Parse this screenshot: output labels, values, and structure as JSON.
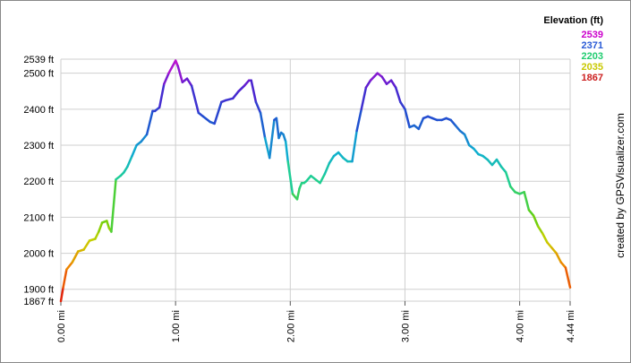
{
  "chart_data": {
    "type": "line",
    "xlabel": "",
    "ylabel": "",
    "xlim": [
      0,
      4.44
    ],
    "ylim": [
      1867,
      2539
    ],
    "y_ticks": [
      {
        "value": 1867,
        "label": "1867 ft"
      },
      {
        "value": 1900,
        "label": "1900 ft"
      },
      {
        "value": 2000,
        "label": "2000 ft"
      },
      {
        "value": 2100,
        "label": "2100 ft"
      },
      {
        "value": 2200,
        "label": "2200 ft"
      },
      {
        "value": 2300,
        "label": "2300 ft"
      },
      {
        "value": 2400,
        "label": "2400 ft"
      },
      {
        "value": 2500,
        "label": "2500 ft"
      },
      {
        "value": 2539,
        "label": "2539 ft"
      }
    ],
    "x_ticks": [
      {
        "value": 0,
        "label": "0.00 mi"
      },
      {
        "value": 1,
        "label": "1.00 mi"
      },
      {
        "value": 2,
        "label": "2.00 mi"
      },
      {
        "value": 3,
        "label": "3.00 mi"
      },
      {
        "value": 4,
        "label": "4.00 mi"
      },
      {
        "value": 4.44,
        "label": "4.44 mi"
      }
    ],
    "grid": true,
    "legend": {
      "title": "Elevation (ft)",
      "placement": "top-right",
      "items": [
        {
          "label": "2539",
          "color": "#cc00cc"
        },
        {
          "label": "2371",
          "color": "#2a5bd6"
        },
        {
          "label": "2203",
          "color": "#20cc70"
        },
        {
          "label": "2035",
          "color": "#c8c800"
        },
        {
          "label": "1867",
          "color": "#cc2020"
        }
      ]
    },
    "color_stops": [
      {
        "value": 1867,
        "color": "#e01010"
      },
      {
        "value": 1960,
        "color": "#f08000"
      },
      {
        "value": 2035,
        "color": "#c8d000"
      },
      {
        "value": 2100,
        "color": "#60d010"
      },
      {
        "value": 2203,
        "color": "#20d090"
      },
      {
        "value": 2280,
        "color": "#10b0d0"
      },
      {
        "value": 2371,
        "color": "#2050d0"
      },
      {
        "value": 2460,
        "color": "#5020d0"
      },
      {
        "value": 2539,
        "color": "#d010d0"
      }
    ],
    "series": [
      {
        "x": [
          0.0,
          0.02,
          0.05,
          0.1,
          0.15,
          0.2,
          0.25,
          0.3,
          0.33,
          0.36,
          0.4,
          0.42,
          0.44,
          0.48,
          0.52,
          0.55,
          0.58,
          0.62,
          0.66,
          0.7,
          0.75,
          0.8,
          0.82,
          0.86,
          0.9,
          0.94,
          1.0,
          1.02,
          1.06,
          1.1,
          1.14,
          1.2,
          1.24,
          1.3,
          1.34,
          1.4,
          1.44,
          1.5,
          1.55,
          1.6,
          1.64,
          1.66,
          1.7,
          1.74,
          1.78,
          1.82,
          1.86,
          1.88,
          1.9,
          1.92,
          1.94,
          1.96,
          1.98,
          2.02,
          2.06,
          2.08,
          2.1,
          2.12,
          2.14,
          2.18,
          2.22,
          2.26,
          2.3,
          2.34,
          2.38,
          2.42,
          2.46,
          2.5,
          2.54,
          2.58,
          2.62,
          2.66,
          2.7,
          2.76,
          2.8,
          2.84,
          2.88,
          2.92,
          2.96,
          3.0,
          3.04,
          3.08,
          3.12,
          3.16,
          3.2,
          3.24,
          3.28,
          3.32,
          3.36,
          3.4,
          3.44,
          3.48,
          3.52,
          3.56,
          3.6,
          3.64,
          3.68,
          3.72,
          3.76,
          3.8,
          3.84,
          3.88,
          3.92,
          3.96,
          4.0,
          4.04,
          4.08,
          4.12,
          4.16,
          4.2,
          4.24,
          4.28,
          4.32,
          4.36,
          4.4,
          4.44
        ],
        "values": [
          1867,
          1905,
          1955,
          1975,
          2005,
          2010,
          2035,
          2040,
          2060,
          2085,
          2090,
          2070,
          2060,
          2205,
          2215,
          2225,
          2240,
          2270,
          2300,
          2310,
          2330,
          2395,
          2395,
          2405,
          2470,
          2500,
          2535,
          2520,
          2475,
          2485,
          2465,
          2390,
          2380,
          2365,
          2360,
          2420,
          2425,
          2430,
          2450,
          2465,
          2480,
          2480,
          2420,
          2390,
          2320,
          2265,
          2370,
          2375,
          2320,
          2335,
          2330,
          2310,
          2255,
          2165,
          2150,
          2180,
          2195,
          2195,
          2200,
          2215,
          2205,
          2195,
          2220,
          2250,
          2270,
          2280,
          2265,
          2255,
          2255,
          2340,
          2400,
          2460,
          2480,
          2500,
          2490,
          2470,
          2480,
          2460,
          2420,
          2400,
          2350,
          2355,
          2345,
          2375,
          2380,
          2375,
          2370,
          2370,
          2375,
          2370,
          2355,
          2340,
          2330,
          2300,
          2290,
          2275,
          2270,
          2260,
          2245,
          2260,
          2240,
          2225,
          2185,
          2170,
          2165,
          2170,
          2120,
          2105,
          2075,
          2055,
          2030,
          2015,
          2000,
          1975,
          1960,
          1905
        ]
      }
    ],
    "credit": "created by GPSVisualizer.com"
  }
}
